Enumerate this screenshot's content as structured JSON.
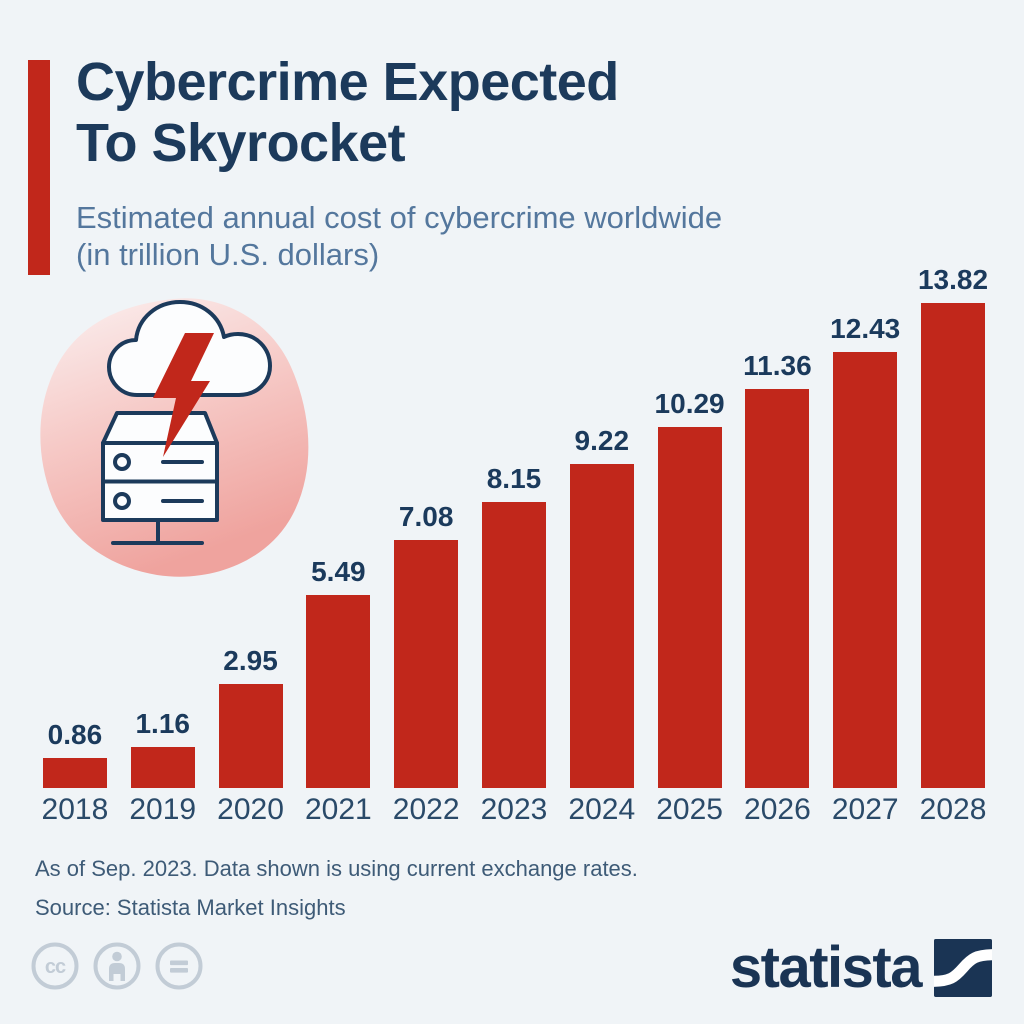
{
  "header": {
    "title_line1": "Cybercrime Expected",
    "title_line2": "To Skyrocket",
    "subtitle_line1": "Estimated annual cost of cybercrime worldwide",
    "subtitle_line2": "(in trillion U.S. dollars)"
  },
  "icon": {
    "name": "cloud-lightning-server-icon",
    "description": "cloud with red lightning bolt striking a server on pink blob"
  },
  "chart_data": {
    "type": "bar",
    "categories": [
      "2018",
      "2019",
      "2020",
      "2021",
      "2022",
      "2023",
      "2024",
      "2025",
      "2026",
      "2027",
      "2028"
    ],
    "values": [
      0.86,
      1.16,
      2.95,
      5.49,
      7.08,
      8.15,
      9.22,
      10.29,
      11.36,
      12.43,
      13.82
    ],
    "title": "Cybercrime Expected To Skyrocket",
    "subtitle": "Estimated annual cost of cybercrime worldwide (in trillion U.S. dollars)",
    "xlabel": "",
    "ylabel": "cost in trillion U.S. dollars",
    "ylim": [
      0,
      14.5
    ],
    "grid": false,
    "legend": "none",
    "bar_color": "#C1271B",
    "value_labels": [
      "0.86",
      "1.16",
      "2.95",
      "5.49",
      "7.08",
      "8.15",
      "9.22",
      "10.29",
      "11.36",
      "12.43",
      "13.82"
    ]
  },
  "footer": {
    "note_line1": "As of Sep. 2023. Data shown is using current exchange rates.",
    "note_line2": "Source: Statista Market Insights",
    "license_icons": [
      "cc-icon",
      "attribution-icon",
      "no-derivatives-icon"
    ],
    "cc_glyph": "cc",
    "brand_text": "statista"
  },
  "colors": {
    "background": "#F0F4F7",
    "bar_red": "#C1271B",
    "accent_red": "#C1271B",
    "title_navy": "#1C3A5B",
    "subtitle_blue": "#54779D",
    "value_label_navy": "#1B3A5C",
    "year_label_navy": "#2A4A69",
    "footnote_gray_blue": "#3E5B77",
    "license_gray": "#C2CCD6",
    "brand_navy": "#1A3454",
    "blob_pink_light": "#FBF1F1",
    "blob_pink_dark": "#EFA39E"
  }
}
